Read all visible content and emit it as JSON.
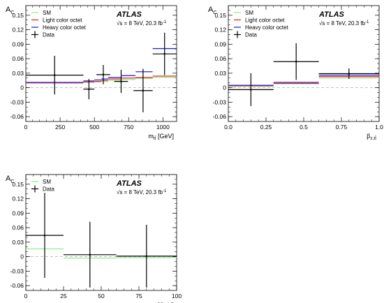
{
  "experiment": "ATLAS",
  "energy": {
    "text": "√s = 8 TeV, 20.3 fb",
    "sup": "-1"
  },
  "colors": {
    "sm": "#90ee90",
    "light": "#e8281e",
    "heavy": "#2828e8",
    "data": "#000000",
    "zero_line": "#bbbbbb"
  },
  "chart_data": [
    {
      "type": "line",
      "ylabel": {
        "main": "A",
        "sub": "C"
      },
      "xlabel": {
        "main": "m",
        "sub": "tt̄",
        "unit": " [GeV]"
      },
      "xlim": [
        0,
        1100
      ],
      "ylim": [
        -0.07,
        0.17
      ],
      "x_ticks": [
        0,
        250,
        500,
        750,
        1000
      ],
      "x_tick_labels": [
        "0",
        "250",
        "500",
        "750",
        "1000"
      ],
      "y_ticks": [
        -0.06,
        -0.03,
        0,
        0.03,
        0.06,
        0.09,
        0.12,
        0.15
      ],
      "y_tick_labels": [
        "-0.06",
        "-0.03",
        "0",
        "0.03",
        "0.06",
        "0.09",
        "0.12",
        "0.15"
      ],
      "bin_edges": [
        0,
        420,
        500,
        550,
        600,
        700,
        800,
        925,
        1100
      ],
      "series": [
        {
          "name": "SM",
          "key": "sm",
          "values": [
            0.01,
            0.011,
            0.012,
            0.013,
            0.015,
            0.017,
            0.019,
            0.021
          ]
        },
        {
          "name": "Light color octet",
          "key": "light",
          "values": [
            0.01,
            0.012,
            0.013,
            0.015,
            0.018,
            0.02,
            0.021,
            0.024
          ]
        },
        {
          "name": "Heavy color octet",
          "key": "heavy",
          "values": [
            0.011,
            0.014,
            0.016,
            0.018,
            0.021,
            0.025,
            0.033,
            0.081
          ]
        }
      ],
      "data": {
        "name": "Data",
        "x": [
          210,
          460,
          565,
          695,
          855,
          1012
        ],
        "x_err": [
          210,
          40,
          50,
          50,
          70,
          87
        ],
        "y": [
          0.026,
          -0.003,
          0.027,
          0.013,
          -0.006,
          0.07
        ],
        "y_err": [
          0.04,
          0.021,
          0.02,
          0.024,
          0.045,
          0.044
        ]
      },
      "legend": {
        "entries": [
          "SM",
          "Light color octet",
          "Heavy color octet",
          "Data"
        ],
        "position": "top-left"
      }
    },
    {
      "type": "line",
      "ylabel": {
        "main": "A",
        "sub": "C"
      },
      "xlabel": {
        "main": "β",
        "sub": "z,tt̄",
        "unit": ""
      },
      "xlim": [
        0,
        1.0
      ],
      "ylim": [
        -0.07,
        0.17
      ],
      "x_ticks": [
        0,
        0.25,
        0.5,
        0.75,
        1.0
      ],
      "x_tick_labels": [
        "0.0",
        "0.25",
        "0.5",
        "0.75",
        "1.0"
      ],
      "y_ticks": [
        -0.06,
        -0.03,
        0,
        0.03,
        0.06,
        0.09,
        0.12,
        0.15
      ],
      "y_tick_labels": [
        "-0.06",
        "-0.03",
        "0",
        "0.03",
        "0.06",
        "0.09",
        "0.12",
        "0.15"
      ],
      "bin_edges": [
        0,
        0.3,
        0.6,
        1.0
      ],
      "series": [
        {
          "name": "SM",
          "key": "sm",
          "values": [
            0.003,
            0.008,
            0.02
          ]
        },
        {
          "name": "Light color octet",
          "key": "light",
          "values": [
            0.004,
            0.009,
            0.023
          ]
        },
        {
          "name": "Heavy color octet",
          "key": "heavy",
          "values": [
            0.005,
            0.011,
            0.026
          ]
        }
      ],
      "data": {
        "name": "Data",
        "x": [
          0.15,
          0.45,
          0.8
        ],
        "x_err": [
          0.15,
          0.15,
          0.2
        ],
        "y": [
          -0.004,
          0.054,
          0.029
        ],
        "y_err": [
          0.034,
          0.038,
          0.011
        ]
      },
      "legend": {
        "entries": [
          "SM",
          "Light color octet",
          "Heavy color octet",
          "Data"
        ],
        "position": "top-left"
      }
    },
    {
      "type": "line",
      "ylabel": {
        "main": "A",
        "sub": "C"
      },
      "xlabel": {
        "main": "p",
        "sub": "T,tt̄",
        "unit": " [GeV]"
      },
      "xlim": [
        0,
        100
      ],
      "ylim": [
        -0.07,
        0.17
      ],
      "x_ticks": [
        0,
        25,
        50,
        75,
        100
      ],
      "x_tick_labels": [
        "0",
        "25",
        "50",
        "75",
        "100"
      ],
      "y_ticks": [
        -0.06,
        -0.03,
        0,
        0.03,
        0.06,
        0.09,
        0.12,
        0.15
      ],
      "y_tick_labels": [
        "-0.06",
        "-0.03",
        "0",
        "0.03",
        "0.06",
        "0.09",
        "0.12",
        "0.15"
      ],
      "bin_edges": [
        0,
        25,
        60,
        100
      ],
      "series": [
        {
          "name": "SM",
          "key": "sm",
          "values": [
            0.016,
            -0.003,
            -0.002
          ]
        }
      ],
      "data": {
        "name": "Data",
        "x": [
          12.5,
          42.5,
          80
        ],
        "x_err": [
          12.5,
          17.5,
          20
        ],
        "y": [
          0.044,
          0.004,
          0.001
        ],
        "y_err": [
          0.088,
          0.068,
          0.065
        ]
      },
      "legend": {
        "entries": [
          "SM",
          "Data"
        ],
        "position": "top-left"
      }
    }
  ]
}
